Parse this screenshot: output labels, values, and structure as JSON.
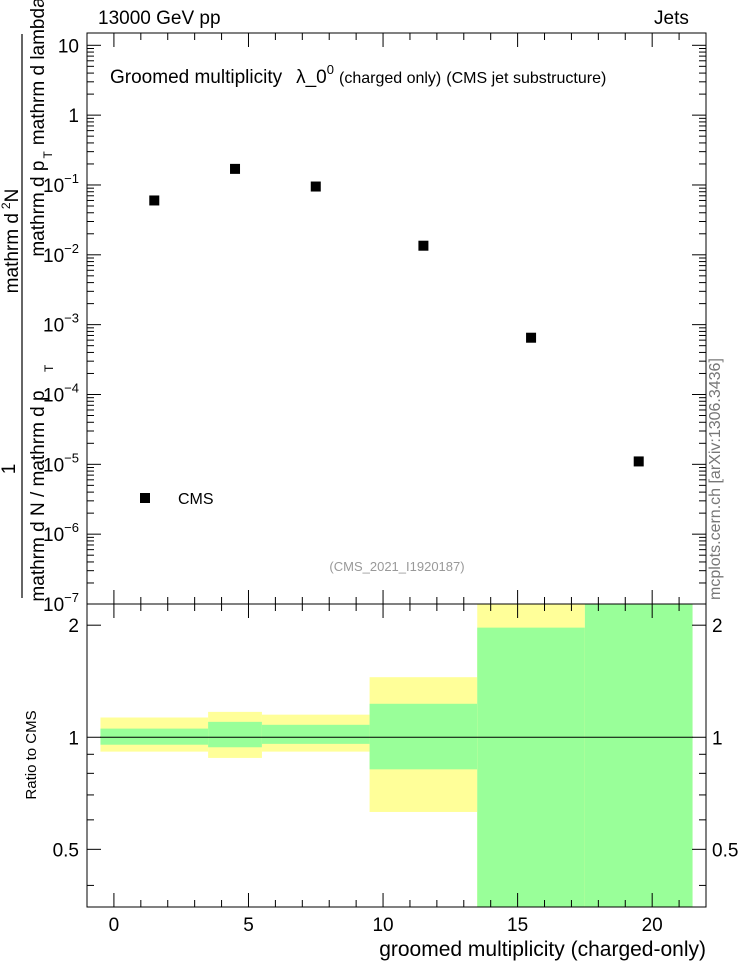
{
  "header": {
    "left": "13000 GeV pp",
    "right": "Jets"
  },
  "side_label": "mcplots.cern.ch [arXiv:1306.3436]",
  "chart_data": [
    {
      "type": "scatter",
      "panel": "main",
      "title": "Groomed multiplicity",
      "title_symbol": "λ_0",
      "title_sup": "0",
      "title_small": "(charged only)",
      "title_tail": "(CMS jet substructure)",
      "watermark": "(CMS_2021_I1920187)",
      "ylabel": "1 / mathrm d N / mathrm d p_T mathrm d^2N / mathrm d p_T mathrm d lambda",
      "ylabel_parts": {
        "prefix": "1",
        "denominator": "mathrm d N / mathrm d p",
        "numerator_pre": "mathrm d",
        "numerator_sup": "2",
        "numerator_post": "N",
        "tail_pre": "mathrm d p",
        "tail_sub": "T",
        "tail_post": "mathrm d lambda",
        "sub_t": "T"
      },
      "yscale": "log",
      "ylim": [
        1e-07,
        15
      ],
      "xlim": [
        -1,
        22
      ],
      "yticks": [
        {
          "v": 10,
          "base": "10",
          "exp": ""
        },
        {
          "v": 1,
          "base": "1",
          "exp": ""
        },
        {
          "v": 0.1,
          "base": "10",
          "exp": "−1"
        },
        {
          "v": 0.01,
          "base": "10",
          "exp": "−2"
        },
        {
          "v": 0.001,
          "base": "10",
          "exp": "−3"
        },
        {
          "v": 0.0001,
          "base": "10",
          "exp": "−4"
        },
        {
          "v": 1e-05,
          "base": "10",
          "exp": "−5"
        },
        {
          "v": 1e-06,
          "base": "10",
          "exp": "−6"
        },
        {
          "v": 1e-07,
          "base": "10",
          "exp": "−7"
        }
      ],
      "series": [
        {
          "name": "CMS",
          "color": "#000000",
          "marker": "square",
          "x": [
            1.5,
            4.5,
            7.5,
            11.5,
            15.5,
            19.5
          ],
          "y": [
            0.06,
            0.17,
            0.095,
            0.0135,
            0.00065,
            1.1e-05
          ]
        }
      ],
      "legend": {
        "position": "bottom-left"
      }
    },
    {
      "type": "area",
      "panel": "ratio",
      "ylabel": "Ratio to CMS",
      "xlabel": "groomed multiplicity (charged-only)",
      "xlim": [
        -1,
        22
      ],
      "ylim": [
        0.35,
        2.28
      ],
      "xticks": [
        0,
        5,
        10,
        15,
        20
      ],
      "yticks": [
        0.5,
        1,
        2
      ],
      "reference_line": 1,
      "colors": {
        "stat": "#99ff99",
        "total": "#ffff99"
      },
      "bins": [
        {
          "x0": -0.5,
          "x1": 3.5,
          "stat": [
            0.955,
            1.055
          ],
          "total": [
            0.915,
            1.13
          ]
        },
        {
          "x0": 3.5,
          "x1": 5.5,
          "stat": [
            0.94,
            1.1
          ],
          "total": [
            0.88,
            1.17
          ]
        },
        {
          "x0": 5.5,
          "x1": 9.5,
          "stat": [
            0.96,
            1.08
          ],
          "total": [
            0.915,
            1.15
          ]
        },
        {
          "x0": 9.5,
          "x1": 13.5,
          "stat": [
            0.82,
            1.23
          ],
          "total": [
            0.63,
            1.45
          ]
        },
        {
          "x0": 13.5,
          "x1": 17.5,
          "stat": [
            0.35,
            1.97
          ],
          "total": [
            0.35,
            2.28
          ]
        },
        {
          "x0": 17.5,
          "x1": 21.5,
          "stat": [
            0.35,
            2.28
          ],
          "total": [
            0.35,
            2.28
          ]
        }
      ]
    }
  ]
}
